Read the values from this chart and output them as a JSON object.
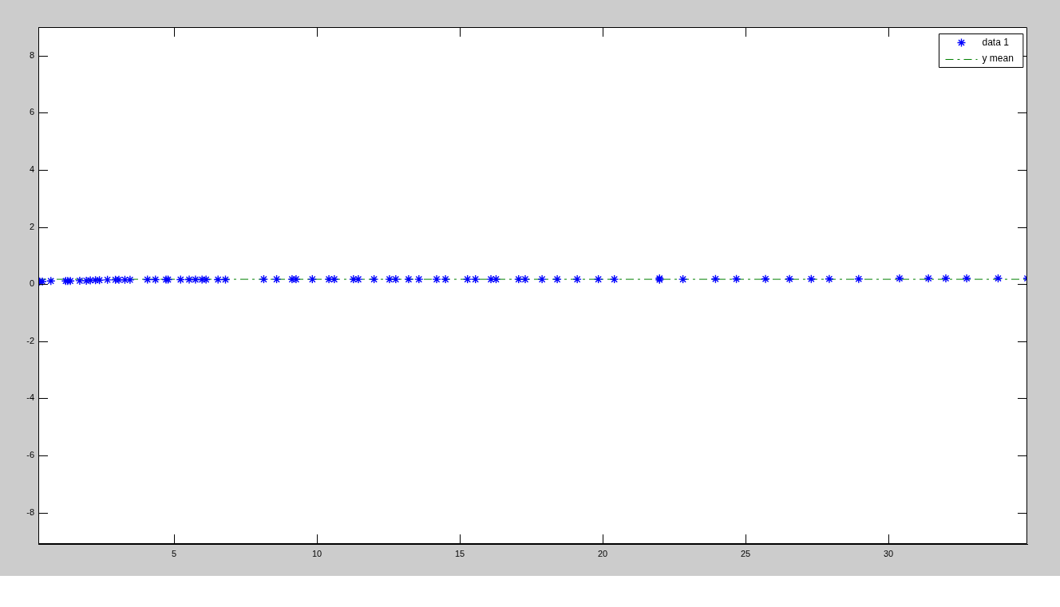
{
  "chart_data": {
    "type": "scatter",
    "xlim": [
      0.25,
      34.86
    ],
    "ylim": [
      -9.1,
      9
    ],
    "xticks": [
      5,
      10,
      15,
      20,
      25,
      30
    ],
    "yticks": [
      -8,
      -6,
      -4,
      -2,
      0,
      2,
      4,
      6,
      8
    ],
    "grid": false,
    "legend": "top right",
    "series": [
      {
        "name": "data 1",
        "type": "scatter",
        "color": "#0000ff",
        "marker": "cross",
        "x": [
          0.3,
          0.39,
          0.69,
          1.21,
          1.28,
          1.37,
          1.7,
          1.93,
          2.07,
          2.25,
          2.39,
          2.67,
          2.95,
          3.07,
          3.28,
          3.46,
          4.07,
          4.35,
          4.72,
          4.79,
          5.23,
          5.53,
          5.75,
          5.98,
          6.12,
          6.54,
          6.8,
          8.14,
          8.59,
          9.13,
          9.27,
          9.84,
          10.42,
          10.61,
          11.28,
          11.45,
          12.0,
          12.54,
          12.76,
          13.21,
          13.57,
          14.19,
          14.5,
          15.27,
          15.55,
          16.09,
          16.27,
          17.06,
          17.29,
          17.88,
          18.41,
          19.11,
          19.85,
          20.41,
          21.99,
          21.99,
          22.81,
          23.95,
          24.68,
          25.7,
          26.54,
          27.3,
          27.93,
          28.96,
          30.39,
          31.4,
          32.01,
          32.74,
          33.84,
          34.86
        ],
        "values": [
          0.09,
          0.09,
          0.11,
          0.11,
          0.11,
          0.11,
          0.12,
          0.12,
          0.13,
          0.14,
          0.14,
          0.15,
          0.15,
          0.15,
          0.15,
          0.15,
          0.16,
          0.16,
          0.16,
          0.16,
          0.16,
          0.16,
          0.16,
          0.16,
          0.16,
          0.16,
          0.16,
          0.17,
          0.17,
          0.17,
          0.17,
          0.17,
          0.17,
          0.17,
          0.17,
          0.17,
          0.17,
          0.17,
          0.17,
          0.17,
          0.17,
          0.17,
          0.17,
          0.17,
          0.17,
          0.17,
          0.17,
          0.17,
          0.17,
          0.17,
          0.17,
          0.17,
          0.17,
          0.17,
          0.15,
          0.2,
          0.17,
          0.18,
          0.18,
          0.18,
          0.18,
          0.18,
          0.18,
          0.18,
          0.2,
          0.2,
          0.2,
          0.2,
          0.2,
          0.2
        ]
      },
      {
        "name": "y mean",
        "type": "line",
        "color": "#008000",
        "marker": "none",
        "line_style": "dashed",
        "x": [
          0.25,
          34.86
        ],
        "values": [
          0.17,
          0.17
        ]
      }
    ]
  }
}
